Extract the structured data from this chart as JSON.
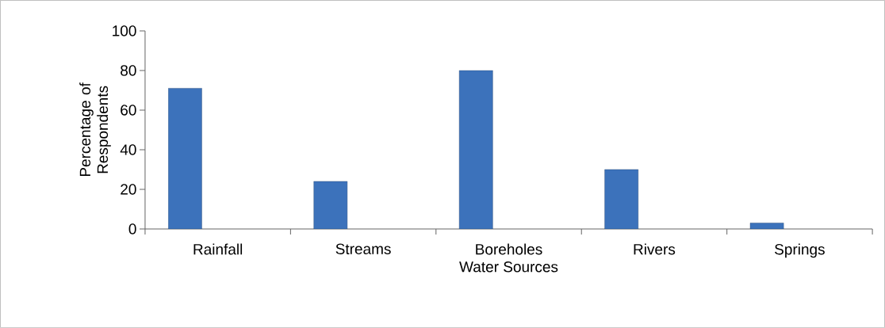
{
  "chart_data": {
    "type": "bar",
    "xlabel": "Water Sources",
    "ylabel": "Percentage of Respondents",
    "categories": [
      "Rainfall",
      "Streams",
      "Boreholes",
      "Rivers",
      "Springs"
    ],
    "values": [
      71,
      24,
      80,
      30,
      3
    ],
    "color": "#3c72bb",
    "ylim": [
      0,
      100
    ],
    "yticks": [
      0,
      20,
      40,
      60,
      80,
      100
    ]
  }
}
